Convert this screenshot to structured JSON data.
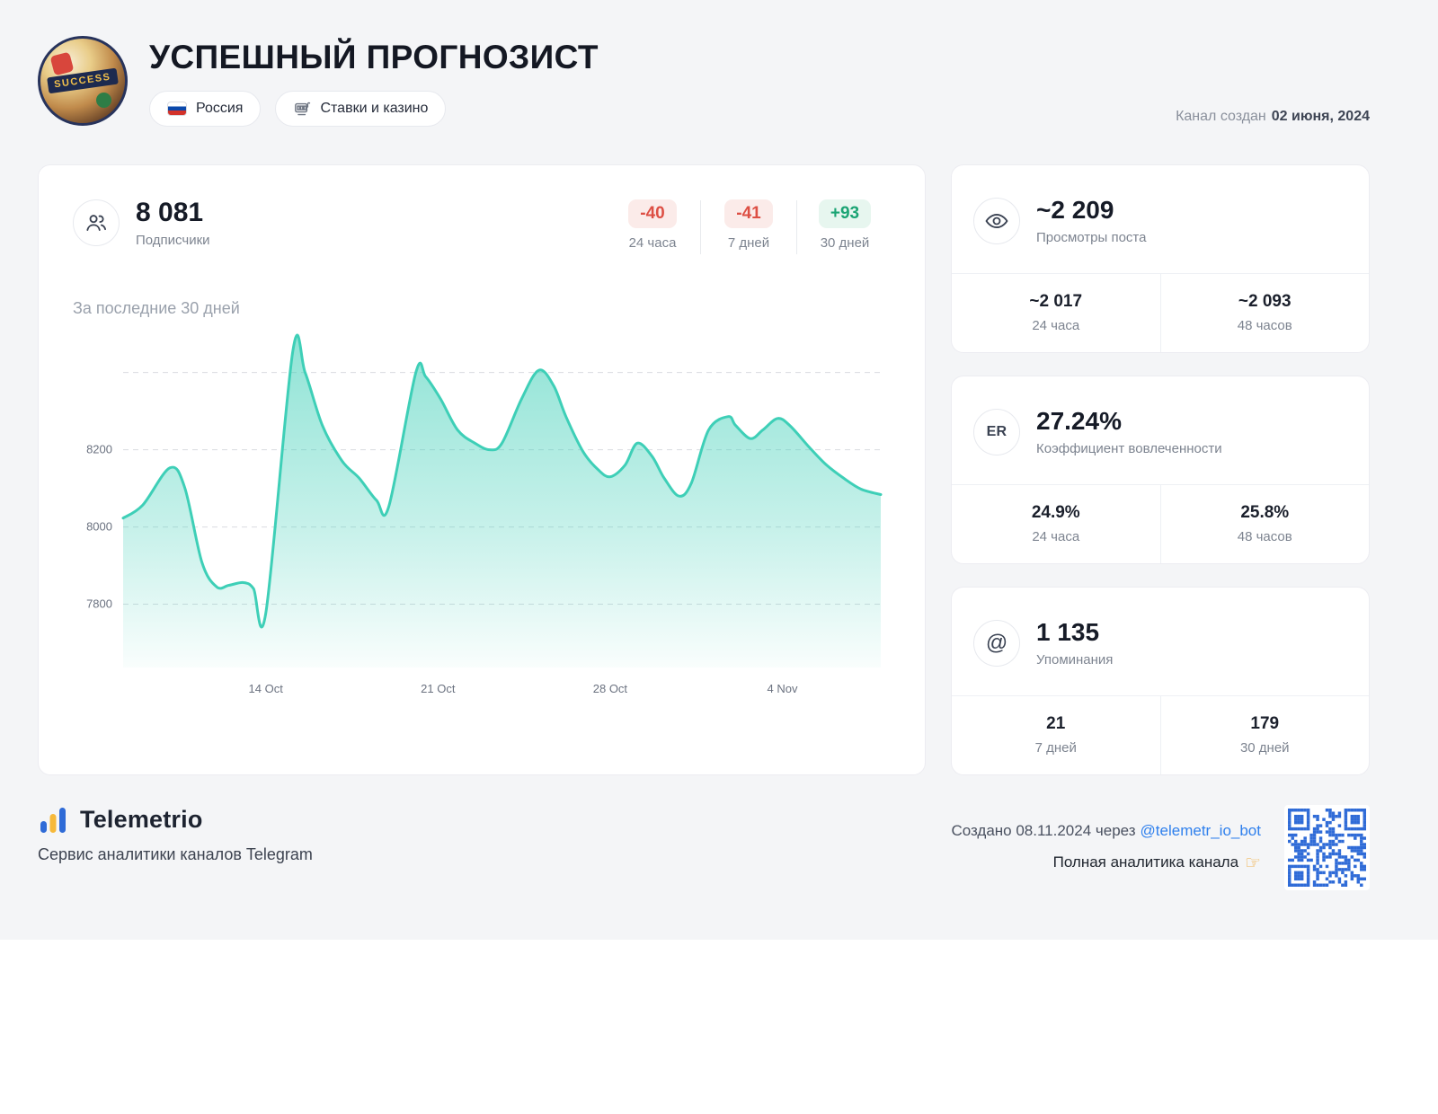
{
  "header": {
    "title": "УСПЕШНЫЙ ПРОГНОЗИСТ",
    "avatar_text": "SUCCESS",
    "country": "Россия",
    "category": "Ставки и казино",
    "created_label": "Канал создан",
    "created_date": "02 июня, 2024"
  },
  "subscribers": {
    "value": "8 081",
    "label": "Подписчики",
    "deltas": [
      {
        "value": "-40",
        "period": "24 часа",
        "type": "negative"
      },
      {
        "value": "-41",
        "period": "7 дней",
        "type": "negative"
      },
      {
        "value": "+93",
        "period": "30 дней",
        "type": "positive"
      }
    ]
  },
  "chart_data": {
    "type": "area",
    "title": "За последние 30 дней",
    "series_name": "Подписчики",
    "line_color": "#3ecfb7",
    "grid_color": "#d9dce1",
    "axis_text_color": "#6b7280",
    "x_range": [
      0,
      30.8
    ],
    "y_range": [
      7636,
      8490
    ],
    "x_ticks": [
      {
        "label": "14 Oct",
        "day": 5.8
      },
      {
        "label": "21 Oct",
        "day": 12.8
      },
      {
        "label": "28 Oct",
        "day": 19.8
      },
      {
        "label": "4 Nov",
        "day": 26.8
      }
    ],
    "y_gridlines": [
      {
        "value": 8400,
        "label": ""
      },
      {
        "value": 8200,
        "label": "8200"
      },
      {
        "value": 8000,
        "label": "8000"
      },
      {
        "value": 7800,
        "label": "7800"
      }
    ],
    "points": [
      [
        0,
        8023
      ],
      [
        0.8,
        8057
      ],
      [
        1.9,
        8153
      ],
      [
        2.5,
        8103
      ],
      [
        3.2,
        7909
      ],
      [
        3.8,
        7845
      ],
      [
        4.3,
        7849
      ],
      [
        4.9,
        7856
      ],
      [
        5.3,
        7840
      ],
      [
        5.8,
        7776
      ],
      [
        6.9,
        8457
      ],
      [
        7.4,
        8400
      ],
      [
        8.1,
        8263
      ],
      [
        8.9,
        8171
      ],
      [
        9.6,
        8126
      ],
      [
        10.3,
        8069
      ],
      [
        10.8,
        8053
      ],
      [
        11.9,
        8400
      ],
      [
        12.3,
        8389
      ],
      [
        12.9,
        8332
      ],
      [
        13.6,
        8251
      ],
      [
        14.3,
        8217
      ],
      [
        14.9,
        8200
      ],
      [
        15.4,
        8217
      ],
      [
        16.2,
        8332
      ],
      [
        16.9,
        8406
      ],
      [
        17.5,
        8366
      ],
      [
        18,
        8286
      ],
      [
        18.7,
        8195
      ],
      [
        19.3,
        8149
      ],
      [
        19.8,
        8130
      ],
      [
        20.4,
        8160
      ],
      [
        20.9,
        8217
      ],
      [
        21.5,
        8183
      ],
      [
        22,
        8126
      ],
      [
        22.6,
        8080
      ],
      [
        23.1,
        8114
      ],
      [
        23.8,
        8251
      ],
      [
        24.6,
        8286
      ],
      [
        24.9,
        8263
      ],
      [
        25.5,
        8229
      ],
      [
        26,
        8251
      ],
      [
        26.6,
        8281
      ],
      [
        27.1,
        8263
      ],
      [
        27.9,
        8206
      ],
      [
        28.6,
        8160
      ],
      [
        29.3,
        8126
      ],
      [
        30,
        8098
      ],
      [
        30.8,
        8084
      ]
    ]
  },
  "side_cards": [
    {
      "icon": "eye-icon",
      "value": "~2 209",
      "label": "Просмотры поста",
      "stats": [
        {
          "value": "~2 017",
          "period": "24 часа"
        },
        {
          "value": "~2 093",
          "period": "48 часов"
        }
      ]
    },
    {
      "icon": "er-icon",
      "icon_text": "ER",
      "value": "27.24%",
      "label": "Коэффициент вовлеченности",
      "stats": [
        {
          "value": "24.9%",
          "period": "24 часа"
        },
        {
          "value": "25.8%",
          "period": "48 часов"
        }
      ]
    },
    {
      "icon": "at-icon",
      "icon_text": "@",
      "value": "1 135",
      "label": "Упоминания",
      "stats": [
        {
          "value": "21",
          "period": "7 дней"
        },
        {
          "value": "179",
          "period": "30 дней"
        }
      ]
    }
  ],
  "footer": {
    "brand": "Telemetrio",
    "tagline": "Сервис аналитики каналов Telegram",
    "created_prefix": "Создано 08.11.2024 через",
    "bot_link": "@telemetr_io_bot",
    "cta": "Полная аналитика канала",
    "cta_icon": "☞"
  },
  "colors": {
    "background": "#f4f5f7",
    "card": "#ffffff",
    "accent_mint": "#3ecfb7",
    "negative_text": "#dd4f44",
    "negative_bg": "#fbebe9",
    "positive_text": "#1ba474",
    "positive_bg": "#e7f6ef",
    "link_blue": "#2f80ed",
    "qr_blue": "#2f6bd7",
    "logo_yellow": "#f6b93b"
  }
}
